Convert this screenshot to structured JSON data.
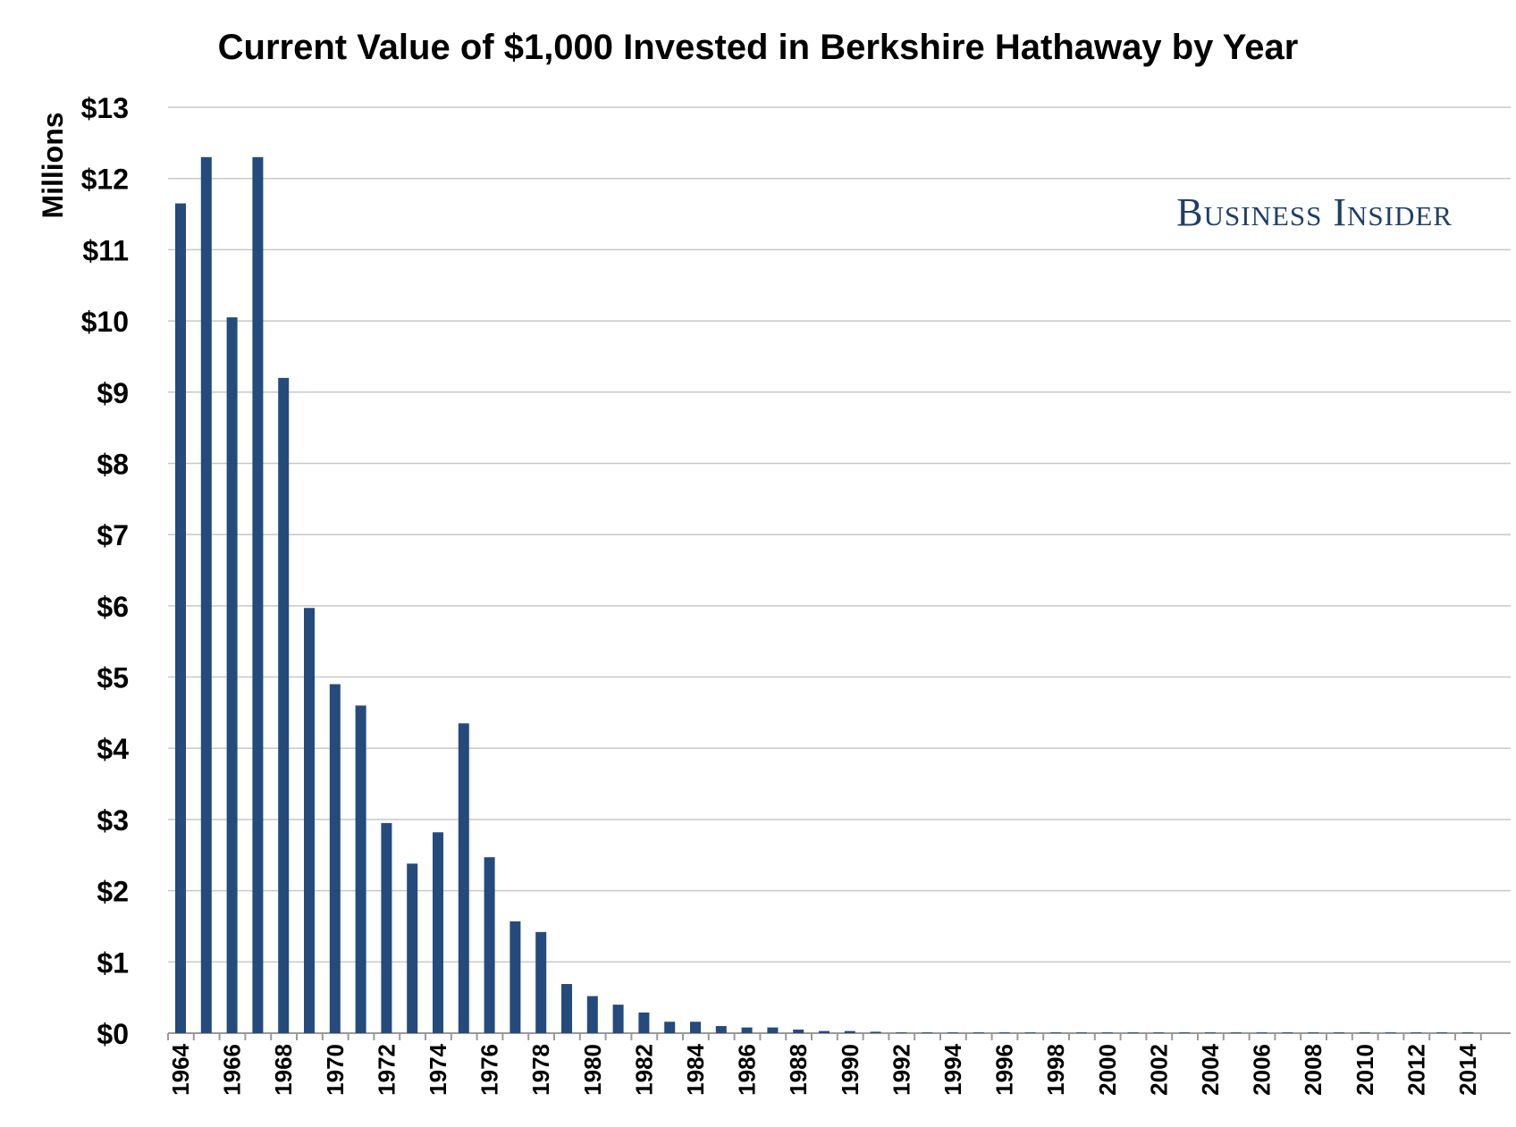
{
  "chart_data": {
    "type": "bar",
    "title": "Current Value of $1,000 Invested in Berkshire Hathaway by Year",
    "ylabel": "Millions",
    "xlabel": "",
    "brand_text": "Business Insider",
    "categories": [
      "1964",
      "1965",
      "1966",
      "1967",
      "1968",
      "1969",
      "1970",
      "1971",
      "1972",
      "1973",
      "1974",
      "1975",
      "1976",
      "1977",
      "1978",
      "1979",
      "1980",
      "1981",
      "1982",
      "1983",
      "1984",
      "1985",
      "1986",
      "1987",
      "1988",
      "1989",
      "1990",
      "1991",
      "1992",
      "1993",
      "1994",
      "1995",
      "1996",
      "1997",
      "1998",
      "1999",
      "2000",
      "2001",
      "2002",
      "2003",
      "2004",
      "2005",
      "2006",
      "2007",
      "2008",
      "2009",
      "2010",
      "2011",
      "2012",
      "2013",
      "2014"
    ],
    "x_tick_labels": [
      "1964",
      "1966",
      "1968",
      "1970",
      "1972",
      "1974",
      "1976",
      "1978",
      "1980",
      "1982",
      "1984",
      "1986",
      "1988",
      "1990",
      "1992",
      "1994",
      "1996",
      "1998",
      "2000",
      "2002",
      "2004",
      "2006",
      "2008",
      "2010",
      "2012",
      "2014"
    ],
    "values": [
      11.65,
      12.3,
      10.05,
      12.3,
      9.2,
      5.97,
      4.9,
      4.6,
      2.95,
      2.38,
      2.82,
      4.35,
      2.47,
      1.57,
      1.42,
      0.69,
      0.52,
      0.4,
      0.29,
      0.16,
      0.16,
      0.1,
      0.08,
      0.08,
      0.05,
      0.03,
      0.03,
      0.02,
      0.01,
      0.01,
      0.01,
      0.01,
      0.01,
      0.01,
      0.01,
      0.01,
      0.01,
      0.01,
      0.01,
      0.01,
      0.01,
      0.01,
      0.01,
      0.01,
      0.01,
      0.01,
      0.01,
      0.01,
      0.01,
      0.01,
      0.01
    ],
    "y_tick_labels": [
      "$0",
      "$1",
      "$2",
      "$3",
      "$4",
      "$5",
      "$6",
      "$7",
      "$8",
      "$9",
      "$10",
      "$11",
      "$12",
      "$13"
    ],
    "ylim": [
      0,
      13
    ],
    "grid": true,
    "legend": "none",
    "colors": {
      "bar": "#254a7c",
      "brand": "#1f3f66",
      "grid": "#c8c8c8"
    }
  }
}
